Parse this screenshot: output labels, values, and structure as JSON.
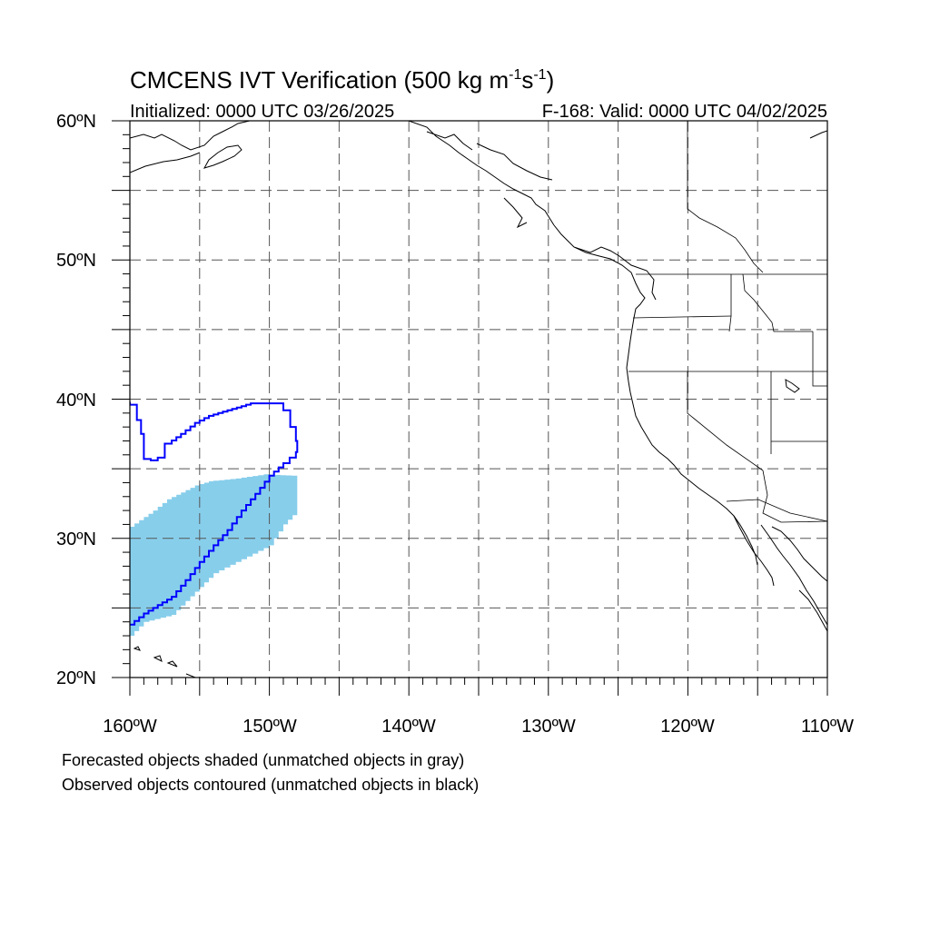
{
  "title": {
    "main": "CMCENS IVT Verification (500 kg m",
    "exp1": "-1",
    "mid": "s",
    "exp2": "-1",
    "close": ")"
  },
  "subtitle_left": "Initialized: 0000 UTC 03/26/2025",
  "subtitle_right": "F-168: Valid: 0000 UTC 04/02/2025",
  "lat_labels": [
    "60ºN",
    "50ºN",
    "40ºN",
    "30ºN",
    "20ºN"
  ],
  "lon_labels": [
    "160ºW",
    "150ºW",
    "140ºW",
    "130ºW",
    "120ºW",
    "110ºW"
  ],
  "footer": {
    "line1": "Forecasted objects shaded (unmatched objects in gray)",
    "line2": "Observed objects contoured (unmatched objects in black)"
  },
  "map_extent": {
    "lon_min": -160,
    "lon_max": -110,
    "lat_min": 20,
    "lat_max": 60,
    "grid_step_deg": 5
  },
  "colors": {
    "forecast_fill": "#87ceeb",
    "observed_contour": "#0000ff",
    "coastline": "#000000",
    "grid": "#555555"
  },
  "forecast_object": {
    "label": "forecast",
    "points": [
      [
        -160,
        23.0
      ],
      [
        -159,
        24.0
      ],
      [
        -157,
        24.5
      ],
      [
        -156,
        25.5
      ],
      [
        -155,
        26.5
      ],
      [
        -154,
        27.5
      ],
      [
        -152,
        28.5
      ],
      [
        -150,
        29.5
      ],
      [
        -149,
        31
      ],
      [
        -148,
        32
      ],
      [
        -148,
        34.5
      ],
      [
        -150,
        34.6
      ],
      [
        -152,
        34.3
      ],
      [
        -154,
        34.1
      ],
      [
        -155,
        33.8
      ],
      [
        -156,
        33.3
      ],
      [
        -157,
        32.8
      ],
      [
        -158,
        32.0
      ],
      [
        -159,
        31.3
      ],
      [
        -160,
        30.6
      ]
    ]
  },
  "observed_object": {
    "label": "observed",
    "points": [
      [
        -160,
        23.8
      ],
      [
        -159,
        24.6
      ],
      [
        -158,
        25.2
      ],
      [
        -157,
        25.8
      ],
      [
        -156,
        27.0
      ],
      [
        -155,
        28.3
      ],
      [
        -154,
        29.5
      ],
      [
        -153,
        30.6
      ],
      [
        -152,
        32.0
      ],
      [
        -151,
        33.2
      ],
      [
        -150,
        34.5
      ],
      [
        -149,
        35.4
      ],
      [
        -148.1,
        36.2
      ],
      [
        -148,
        37.0
      ],
      [
        -148.1,
        38.0
      ],
      [
        -148.5,
        39.2
      ],
      [
        -149,
        39.7
      ],
      [
        -150.5,
        39.7
      ],
      [
        -151,
        39.7
      ],
      [
        -152,
        39.4
      ],
      [
        -153,
        39.1
      ],
      [
        -154,
        38.8
      ],
      [
        -155,
        38.3
      ],
      [
        -156,
        37.5
      ],
      [
        -157,
        36.8
      ],
      [
        -157.5,
        35.8
      ],
      [
        -158,
        35.6
      ],
      [
        -158.5,
        35.7
      ],
      [
        -159,
        37.5
      ],
      [
        -159.2,
        38.5
      ],
      [
        -159.5,
        39.6
      ],
      [
        -160,
        39.8
      ]
    ]
  }
}
